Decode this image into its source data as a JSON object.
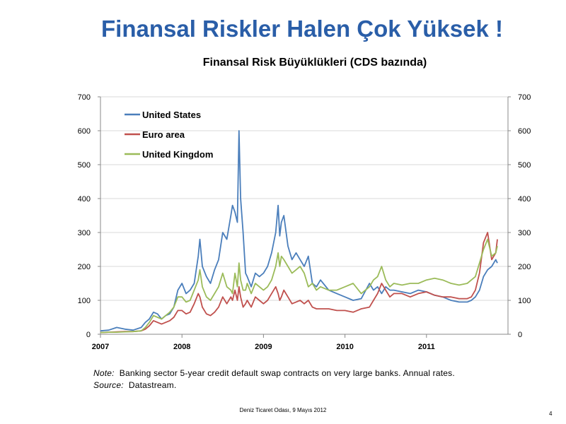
{
  "slide_title": "Finansal Riskler Halen Çok Yüksek !",
  "note": {
    "note_label": "Note:",
    "note_text": "Banking sector 5-year credit default swap contracts on very large banks. Annual rates.",
    "source_label": "Source:",
    "source_text": "Datastream."
  },
  "footer": "Deniz Ticaret Odası, 9 Mayıs 2012",
  "page_number": "4",
  "chart_data": {
    "type": "line",
    "title": "Finansal Risk Büyüklükleri (CDS bazında)",
    "xlabel": "",
    "ylabel": "",
    "x_ticks": [
      "2007",
      "2008",
      "2009",
      "2010",
      "2011"
    ],
    "xlim": [
      2007.0,
      2012.0
    ],
    "ylim": [
      0,
      700
    ],
    "y_ticks": [
      0,
      100,
      200,
      300,
      400,
      500,
      600,
      700
    ],
    "y_axis_right": true,
    "grid": "horizontal",
    "legend_position": "top-left",
    "series": [
      {
        "name": "United States",
        "color": "#4a7ebb",
        "x": [
          2007.0,
          2007.1,
          2007.2,
          2007.3,
          2007.4,
          2007.5,
          2007.55,
          2007.6,
          2007.65,
          2007.7,
          2007.75,
          2007.8,
          2007.85,
          2007.9,
          2007.95,
          2008.0,
          2008.05,
          2008.1,
          2008.15,
          2008.2,
          2008.22,
          2008.25,
          2008.3,
          2008.35,
          2008.4,
          2008.45,
          2008.5,
          2008.55,
          2008.6,
          2008.62,
          2008.65,
          2008.68,
          2008.7,
          2008.72,
          2008.75,
          2008.78,
          2008.8,
          2008.85,
          2008.9,
          2008.95,
          2009.0,
          2009.05,
          2009.1,
          2009.15,
          2009.18,
          2009.2,
          2009.22,
          2009.25,
          2009.3,
          2009.35,
          2009.4,
          2009.45,
          2009.5,
          2009.55,
          2009.6,
          2009.65,
          2009.7,
          2009.8,
          2009.9,
          2010.0,
          2010.1,
          2010.2,
          2010.3,
          2010.35,
          2010.4,
          2010.45,
          2010.5,
          2010.55,
          2010.6,
          2010.7,
          2010.8,
          2010.9,
          2011.0,
          2011.1,
          2011.2,
          2011.3,
          2011.4,
          2011.5,
          2011.55,
          2011.6,
          2011.65,
          2011.7,
          2011.75,
          2011.8,
          2011.85,
          2011.87
        ],
        "y": [
          10,
          12,
          20,
          15,
          12,
          20,
          35,
          45,
          65,
          60,
          45,
          55,
          60,
          80,
          130,
          150,
          120,
          130,
          150,
          230,
          280,
          200,
          170,
          150,
          190,
          220,
          300,
          280,
          350,
          380,
          360,
          330,
          600,
          400,
          300,
          180,
          170,
          140,
          180,
          170,
          180,
          200,
          240,
          300,
          380,
          290,
          330,
          350,
          260,
          220,
          240,
          220,
          200,
          230,
          150,
          140,
          160,
          130,
          120,
          110,
          100,
          105,
          150,
          130,
          140,
          120,
          140,
          130,
          130,
          125,
          120,
          130,
          125,
          115,
          110,
          100,
          95,
          95,
          100,
          110,
          130,
          170,
          190,
          200,
          220,
          210
        ]
      },
      {
        "name": "Euro area",
        "color": "#c0504d",
        "x": [
          2007.0,
          2007.1,
          2007.2,
          2007.3,
          2007.4,
          2007.5,
          2007.55,
          2007.6,
          2007.65,
          2007.7,
          2007.75,
          2007.8,
          2007.85,
          2007.9,
          2007.95,
          2008.0,
          2008.05,
          2008.1,
          2008.15,
          2008.2,
          2008.22,
          2008.25,
          2008.3,
          2008.35,
          2008.4,
          2008.45,
          2008.5,
          2008.55,
          2008.6,
          2008.62,
          2008.65,
          2008.68,
          2008.7,
          2008.72,
          2008.75,
          2008.78,
          2008.8,
          2008.85,
          2008.9,
          2008.95,
          2009.0,
          2009.05,
          2009.1,
          2009.15,
          2009.18,
          2009.2,
          2009.22,
          2009.25,
          2009.3,
          2009.35,
          2009.4,
          2009.45,
          2009.5,
          2009.55,
          2009.6,
          2009.65,
          2009.7,
          2009.8,
          2009.9,
          2010.0,
          2010.1,
          2010.2,
          2010.3,
          2010.35,
          2010.4,
          2010.45,
          2010.5,
          2010.55,
          2010.6,
          2010.7,
          2010.8,
          2010.9,
          2011.0,
          2011.1,
          2011.2,
          2011.3,
          2011.4,
          2011.5,
          2011.55,
          2011.6,
          2011.65,
          2011.7,
          2011.75,
          2011.8,
          2011.85,
          2011.87
        ],
        "y": [
          5,
          6,
          7,
          8,
          8,
          10,
          15,
          25,
          40,
          35,
          30,
          35,
          40,
          50,
          70,
          70,
          60,
          65,
          90,
          120,
          110,
          80,
          60,
          55,
          65,
          80,
          110,
          90,
          110,
          100,
          130,
          100,
          140,
          110,
          80,
          90,
          100,
          80,
          110,
          100,
          90,
          100,
          120,
          140,
          120,
          100,
          110,
          130,
          110,
          90,
          95,
          100,
          90,
          100,
          80,
          75,
          75,
          75,
          70,
          70,
          65,
          75,
          80,
          100,
          120,
          150,
          130,
          110,
          120,
          120,
          110,
          120,
          125,
          115,
          110,
          110,
          105,
          105,
          110,
          130,
          180,
          270,
          300,
          220,
          240,
          280
        ]
      },
      {
        "name": "United Kingdom",
        "color": "#9bbb59",
        "x": [
          2007.0,
          2007.1,
          2007.2,
          2007.3,
          2007.4,
          2007.5,
          2007.55,
          2007.6,
          2007.65,
          2007.7,
          2007.75,
          2007.8,
          2007.85,
          2007.9,
          2007.95,
          2008.0,
          2008.05,
          2008.1,
          2008.15,
          2008.2,
          2008.22,
          2008.25,
          2008.3,
          2008.35,
          2008.4,
          2008.45,
          2008.5,
          2008.55,
          2008.6,
          2008.62,
          2008.65,
          2008.68,
          2008.7,
          2008.72,
          2008.75,
          2008.78,
          2008.8,
          2008.85,
          2008.9,
          2008.95,
          2009.0,
          2009.05,
          2009.1,
          2009.15,
          2009.18,
          2009.2,
          2009.22,
          2009.25,
          2009.3,
          2009.35,
          2009.4,
          2009.45,
          2009.5,
          2009.55,
          2009.6,
          2009.65,
          2009.7,
          2009.8,
          2009.9,
          2010.0,
          2010.1,
          2010.2,
          2010.3,
          2010.35,
          2010.4,
          2010.45,
          2010.5,
          2010.55,
          2010.6,
          2010.7,
          2010.8,
          2010.9,
          2011.0,
          2011.1,
          2011.2,
          2011.3,
          2011.4,
          2011.5,
          2011.55,
          2011.6,
          2011.65,
          2011.7,
          2011.75,
          2011.8,
          2011.85,
          2011.87
        ],
        "y": [
          5,
          6,
          6,
          7,
          8,
          10,
          20,
          35,
          55,
          50,
          45,
          55,
          65,
          80,
          110,
          110,
          95,
          100,
          130,
          160,
          190,
          140,
          110,
          100,
          120,
          140,
          180,
          140,
          130,
          120,
          180,
          140,
          210,
          160,
          130,
          130,
          150,
          120,
          150,
          140,
          130,
          140,
          160,
          200,
          240,
          200,
          230,
          220,
          200,
          180,
          190,
          200,
          180,
          140,
          150,
          130,
          140,
          130,
          130,
          140,
          150,
          120,
          140,
          160,
          170,
          200,
          160,
          140,
          150,
          145,
          150,
          150,
          160,
          165,
          160,
          150,
          145,
          150,
          160,
          170,
          210,
          250,
          280,
          230,
          240,
          260
        ]
      }
    ]
  }
}
